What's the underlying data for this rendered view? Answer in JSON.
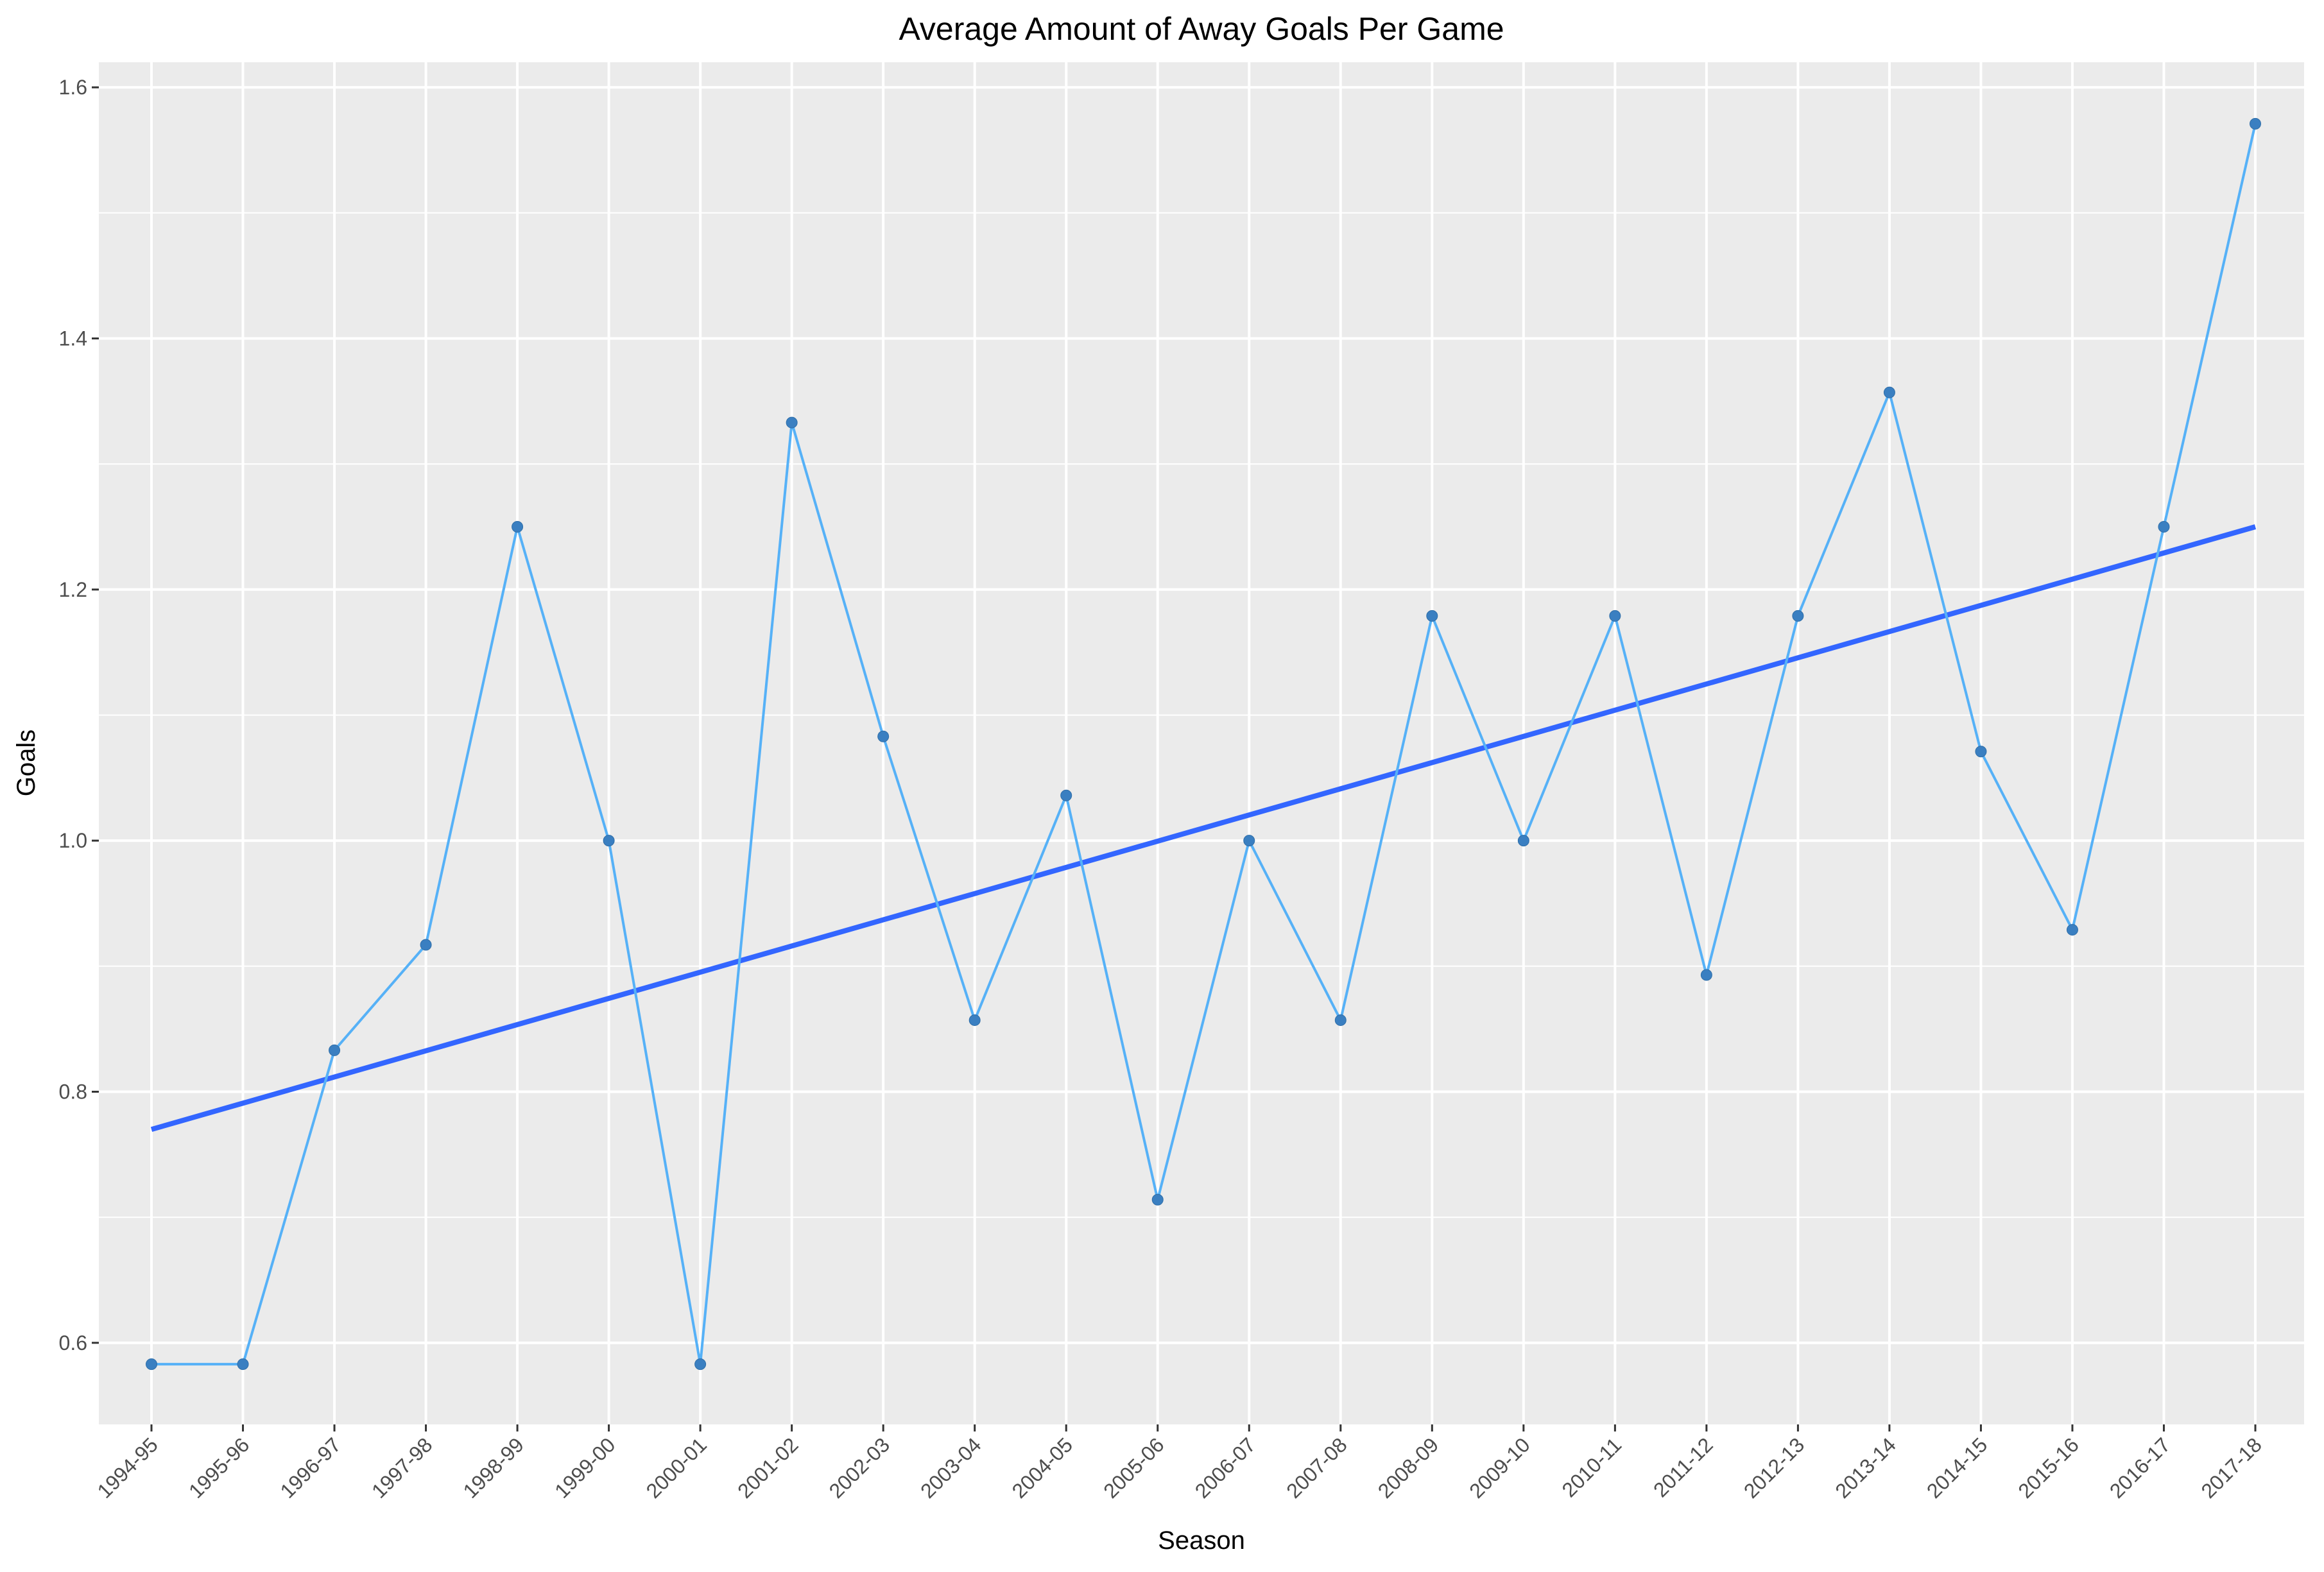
{
  "chart_data": {
    "type": "line",
    "title": "Average Amount of Away Goals Per Game",
    "xlabel": "Season",
    "ylabel": "Goals",
    "categories": [
      "1994-95",
      "1995-96",
      "1996-97",
      "1997-98",
      "1998-99",
      "1999-00",
      "2000-01",
      "2001-02",
      "2002-03",
      "2003-04",
      "2004-05",
      "2005-06",
      "2006-07",
      "2007-08",
      "2008-09",
      "2009-10",
      "2010-11",
      "2011-12",
      "2012-13",
      "2013-14",
      "2014-15",
      "2015-16",
      "2016-17",
      "2017-18"
    ],
    "series": [
      {
        "values": [
          0.583,
          0.583,
          0.833,
          0.917,
          1.25,
          1.0,
          0.583,
          1.333,
          1.083,
          0.857,
          1.036,
          0.714,
          1.0,
          0.857,
          1.179,
          1.0,
          1.179,
          0.893,
          1.179,
          1.357,
          1.071,
          0.929,
          1.25,
          1.571
        ]
      }
    ],
    "trend_line": {
      "start": 0.77,
      "end": 1.25
    },
    "yticks": [
      "0.6",
      "0.8",
      "1.0",
      "1.2",
      "1.4",
      "1.6"
    ],
    "ylim": [
      0.535,
      1.62
    ],
    "grid": true,
    "colors": {
      "panel_background": "#ebebeb",
      "grid": "#ffffff",
      "series_line": "#56b1f7",
      "series_point": "#3a7fc1",
      "trend_line": "#3366ff"
    }
  }
}
